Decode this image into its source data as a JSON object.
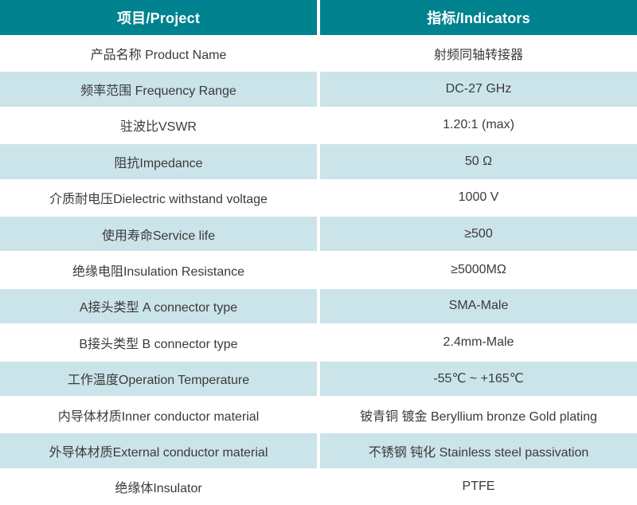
{
  "colors": {
    "header_bg": "#00828f",
    "header_text": "#ffffff",
    "row_bg": "#ffffff",
    "row_alt_bg": "#cbe4e9",
    "body_text": "#3a3a3a"
  },
  "table": {
    "header": {
      "project": "项目/Project",
      "indicators": "指标/Indicators"
    },
    "rows": [
      {
        "project": "产品名称 Product Name",
        "indicator": "射频同轴转接器"
      },
      {
        "project": "频率范围 Frequency Range",
        "indicator": "DC-27 GHz"
      },
      {
        "project": "驻波比VSWR",
        "indicator": "1.20:1 (max)"
      },
      {
        "project": "阻抗Impedance",
        "indicator": "50 Ω"
      },
      {
        "project": "介质耐电压Dielectric withstand voltage",
        "indicator": "1000 V"
      },
      {
        "project": "使用寿命Service life",
        "indicator": "≥500"
      },
      {
        "project": "绝缘电阻Insulation Resistance",
        "indicator": "≥5000MΩ"
      },
      {
        "project": "A接头类型 A connector type",
        "indicator": "SMA-Male"
      },
      {
        "project": "B接头类型 B connector type",
        "indicator": "2.4mm-Male"
      },
      {
        "project": "工作温度Operation Temperature",
        "indicator": "-55℃ ~ +165℃"
      },
      {
        "project": "内导体材质Inner conductor material",
        "indicator": "铍青铜 镀金 Beryllium bronze Gold plating"
      },
      {
        "project": "外导体材质External conductor material",
        "indicator": "不锈钢 钝化 Stainless steel passivation"
      },
      {
        "project": "绝缘体Insulator",
        "indicator": "PTFE"
      }
    ]
  }
}
